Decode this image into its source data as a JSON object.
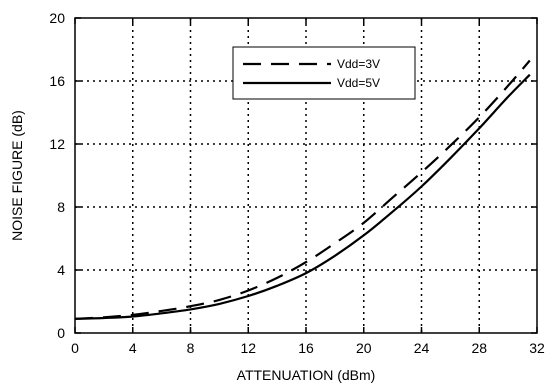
{
  "chart_data": {
    "type": "line",
    "title": "",
    "xlabel": "ATTENUATION (dBm)",
    "ylabel": "NOISE FIGURE (dB)",
    "xlim": [
      0,
      32
    ],
    "ylim": [
      0,
      20
    ],
    "xticks": [
      0,
      4,
      8,
      12,
      16,
      20,
      24,
      28,
      32
    ],
    "yticks": [
      0,
      4,
      8,
      12,
      16,
      20
    ],
    "grid": true,
    "legend_position": "top-center",
    "series": [
      {
        "name": "Vdd=3V",
        "style": "dashed",
        "color": "#000000",
        "x": [
          0,
          2,
          4,
          6,
          8,
          10,
          12,
          14,
          16,
          18,
          20,
          22,
          24,
          26,
          28,
          30,
          31.5
        ],
        "y": [
          0.9,
          1.0,
          1.15,
          1.4,
          1.7,
          2.1,
          2.7,
          3.5,
          4.5,
          5.7,
          7.0,
          8.6,
          10.2,
          11.9,
          13.7,
          15.7,
          17.3
        ]
      },
      {
        "name": "Vdd=5V",
        "style": "solid",
        "color": "#000000",
        "x": [
          0,
          2,
          4,
          6,
          8,
          10,
          12,
          14,
          16,
          18,
          20,
          22,
          24,
          26,
          28,
          30,
          31.5
        ],
        "y": [
          0.9,
          0.95,
          1.05,
          1.25,
          1.5,
          1.85,
          2.35,
          3.0,
          3.8,
          4.9,
          6.2,
          7.7,
          9.3,
          11.1,
          13.0,
          15.0,
          16.4
        ]
      }
    ]
  }
}
